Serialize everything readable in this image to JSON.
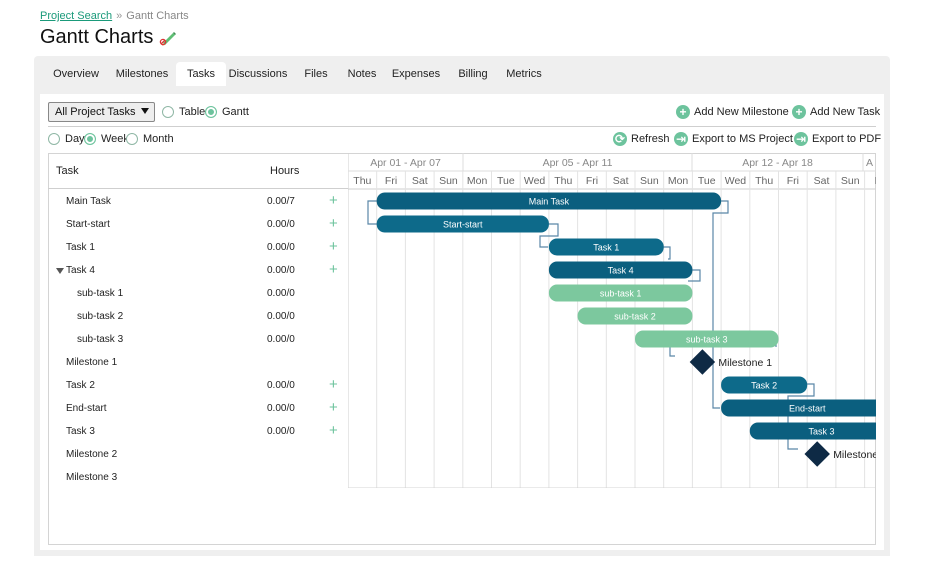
{
  "breadcrumb": {
    "link": "Project Search",
    "separator": "»",
    "current": "Gantt Charts"
  },
  "page_title": "Gantt Charts",
  "tabs": [
    "Overview",
    "Milestones",
    "Tasks",
    "Discussions",
    "Files",
    "Notes",
    "Expenses",
    "Billing",
    "Metrics"
  ],
  "active_tab": "Tasks",
  "toolbar": {
    "filter_value": "All Project Tasks",
    "view_table": "Table",
    "view_gantt": "Gantt",
    "add_milestone": "Add New Milestone",
    "add_task": "Add New Task",
    "scale_day": "Day",
    "scale_week": "Week",
    "scale_month": "Month",
    "refresh": "Refresh",
    "export_project": "Export to MS Project",
    "export_pdf": "Export to PDF"
  },
  "grid": {
    "task_header": "Task",
    "hours_header": "Hours"
  },
  "tasks": [
    {
      "name": "Main Task",
      "hours": "0.00/7",
      "plus": true,
      "indent": 0
    },
    {
      "name": "Start-start",
      "hours": "0.00/0",
      "plus": true,
      "indent": 0
    },
    {
      "name": "Task 1",
      "hours": "0.00/0",
      "plus": true,
      "indent": 0
    },
    {
      "name": "Task 4",
      "hours": "0.00/0",
      "plus": true,
      "indent": 0,
      "expanded": true
    },
    {
      "name": "sub-task 1",
      "hours": "0.00/0",
      "plus": false,
      "indent": 1
    },
    {
      "name": "sub-task 2",
      "hours": "0.00/0",
      "plus": false,
      "indent": 1
    },
    {
      "name": "sub-task 3",
      "hours": "0.00/0",
      "plus": false,
      "indent": 1
    },
    {
      "name": "Milestone 1",
      "hours": "",
      "plus": false,
      "indent": 0
    },
    {
      "name": "Task 2",
      "hours": "0.00/0",
      "plus": true,
      "indent": 0
    },
    {
      "name": "End-start",
      "hours": "0.00/0",
      "plus": true,
      "indent": 0
    },
    {
      "name": "Task 3",
      "hours": "0.00/0",
      "plus": true,
      "indent": 0
    },
    {
      "name": "Milestone 2",
      "hours": "",
      "plus": false,
      "indent": 0
    },
    {
      "name": "Milestone 3",
      "hours": "",
      "plus": false,
      "indent": 0
    }
  ],
  "timeline": {
    "weeks": [
      "Apr 01 - Apr 07",
      "Apr 05 - Apr 11",
      "Apr 12 - Apr 18",
      "A"
    ],
    "days": [
      "Thu",
      "Fri",
      "Sat",
      "Sun",
      "Mon",
      "Tue",
      "Wed",
      "Thu",
      "Fri",
      "Sat",
      "Sun",
      "Mon",
      "Tue",
      "Wed",
      "Thu",
      "Fri",
      "Sat",
      "Sun",
      "M"
    ]
  },
  "bars": [
    {
      "row": 0,
      "label": "Main Task",
      "type": "parent",
      "start_day": 1,
      "end_day": 13.0
    },
    {
      "row": 1,
      "label": "Start-start",
      "type": "task",
      "start_day": 1,
      "end_day": 7.0
    },
    {
      "row": 2,
      "label": "Task 1",
      "type": "task",
      "start_day": 7,
      "end_day": 11.0
    },
    {
      "row": 3,
      "label": "Task 4",
      "type": "parent",
      "start_day": 7,
      "end_day": 12.0
    },
    {
      "row": 4,
      "label": "sub-task 1",
      "type": "sub",
      "start_day": 7,
      "end_day": 12.0
    },
    {
      "row": 5,
      "label": "sub-task 2",
      "type": "sub",
      "start_day": 8,
      "end_day": 12.0
    },
    {
      "row": 6,
      "label": "sub-task 3",
      "type": "sub",
      "start_day": 10,
      "end_day": 15.0
    },
    {
      "row": 8,
      "label": "Task 2",
      "type": "task",
      "start_day": 13,
      "end_day": 16.0
    },
    {
      "row": 9,
      "label": "End-start",
      "type": "parent",
      "start_day": 13,
      "end_day": 19.0
    },
    {
      "row": 10,
      "label": "Task 3",
      "type": "parent",
      "start_day": 14,
      "end_day": 19.0
    }
  ],
  "milestones": [
    {
      "row": 7,
      "label": "Milestone 1",
      "day": 12
    },
    {
      "row": 11,
      "label": "Milestone 2",
      "day": 16
    }
  ],
  "colors": {
    "accent": "#6dc39d",
    "bar_dark": "#0d6a8a",
    "bar_parent": "#0b5f7f",
    "bar_sub": "#7cc89e",
    "milestone": "#0e2a45",
    "link": "#5a87a8"
  }
}
